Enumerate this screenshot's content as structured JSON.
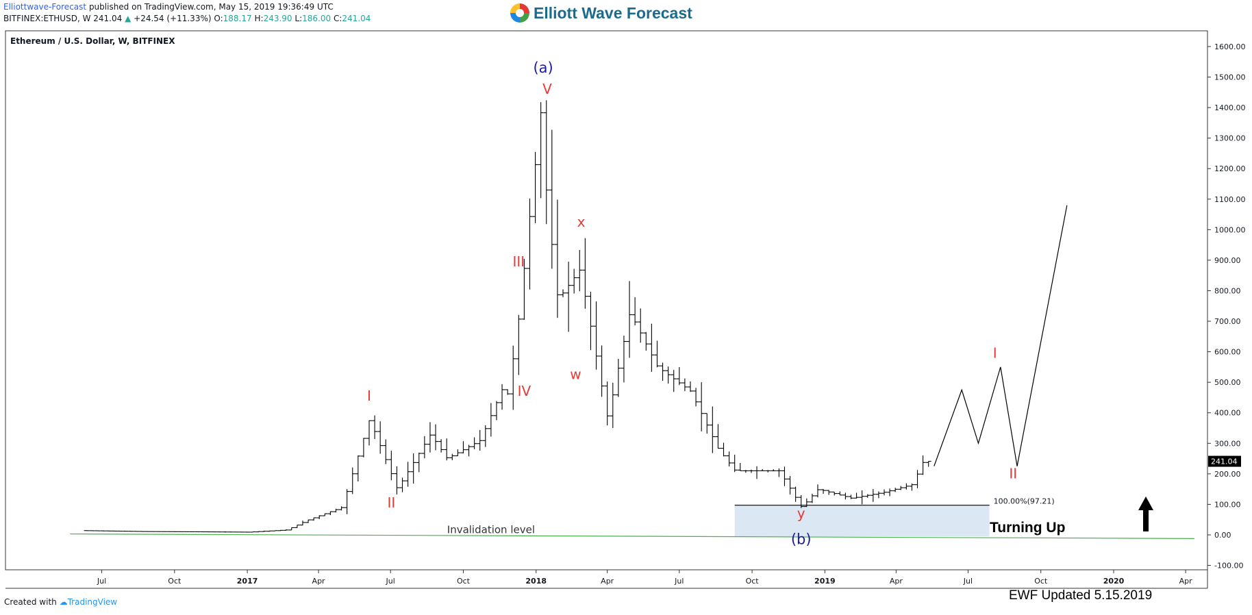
{
  "header": {
    "author": "Elliottwave-Forecast",
    "published": "published on TradingView.com, May 15, 2019 19:36:49 UTC",
    "symbol_line": "BITFINEX:ETHUSD, W  241.04",
    "change_arrow": "▲",
    "change": "+24.54 (+11.33%)",
    "ohlc": [
      {
        "label": "O:",
        "value": "188.17"
      },
      {
        "label": "H:",
        "value": "243.90"
      },
      {
        "label": "L:",
        "value": "186.00"
      },
      {
        "label": "C:",
        "value": "241.04"
      }
    ]
  },
  "brand": {
    "name": "Elliott Wave Forecast"
  },
  "footer": {
    "created_with": "Created with",
    "tradingview": "TradingView",
    "updated": "EWF  Updated 5.15.2019"
  },
  "colors": {
    "wave_red": "#e53935",
    "wave_blue": "#1a1aa8",
    "invalidation_green": "#4caf50",
    "box_fill": "#dbe7f3"
  },
  "chart_data": {
    "type": "candlestick",
    "title": "Ethereum / U.S. Dollar, W, BITFINEX",
    "ylim": [
      -100,
      1650
    ],
    "y_ticks": [
      "1600.00",
      "1500.00",
      "1400.00",
      "1300.00",
      "1200.00",
      "1100.00",
      "1000.00",
      "900.00",
      "800.00",
      "700.00",
      "600.00",
      "500.00",
      "400.00",
      "300.00",
      "200.00",
      "100.00",
      "0.00",
      "-100.00"
    ],
    "x_ticks": [
      "Jul",
      "Oct",
      "2017",
      "Apr",
      "Jul",
      "Oct",
      "2018",
      "Apr",
      "Jul",
      "Oct",
      "2019",
      "Apr",
      "Jul",
      "Oct",
      "2020",
      "Apr"
    ],
    "last_price": "241.04",
    "x_range": [
      "2016-04-24",
      "2020-04-26"
    ],
    "price_path": [
      {
        "date": "2016-06-12",
        "price": 14
      },
      {
        "date": "2016-08-28",
        "price": 11
      },
      {
        "date": "2016-11-13",
        "price": 10
      },
      {
        "date": "2017-01-08",
        "price": 9
      },
      {
        "date": "2017-02-26",
        "price": 16
      },
      {
        "date": "2017-03-26",
        "price": 50
      },
      {
        "date": "2017-05-07",
        "price": 90
      },
      {
        "date": "2017-06-11",
        "price": 380
      },
      {
        "date": "2017-07-16",
        "price": 150
      },
      {
        "date": "2017-08-27",
        "price": 330
      },
      {
        "date": "2017-09-17",
        "price": 250
      },
      {
        "date": "2017-10-29",
        "price": 310
      },
      {
        "date": "2017-11-26",
        "price": 480
      },
      {
        "date": "2017-12-03",
        "price": 460
      },
      {
        "date": "2017-12-17",
        "price": 720
      },
      {
        "date": "2018-01-14",
        "price": 1400
      },
      {
        "date": "2018-01-21",
        "price": 1100
      },
      {
        "date": "2018-02-04",
        "price": 770
      },
      {
        "date": "2018-03-04",
        "price": 870
      },
      {
        "date": "2018-04-08",
        "price": 380
      },
      {
        "date": "2018-05-06",
        "price": 730
      },
      {
        "date": "2018-06-10",
        "price": 550
      },
      {
        "date": "2018-07-22",
        "price": 470
      },
      {
        "date": "2018-08-26",
        "price": 280
      },
      {
        "date": "2018-09-16",
        "price": 210
      },
      {
        "date": "2018-11-11",
        "price": 210
      },
      {
        "date": "2018-12-09",
        "price": 90
      },
      {
        "date": "2018-12-30",
        "price": 150
      },
      {
        "date": "2019-02-10",
        "price": 120
      },
      {
        "date": "2019-03-24",
        "price": 140
      },
      {
        "date": "2019-04-28",
        "price": 165
      },
      {
        "date": "2019-05-12",
        "price": 241
      }
    ],
    "projection": [
      {
        "date": "2019-05-19",
        "price": 225
      },
      {
        "date": "2019-06-23",
        "price": 475
      },
      {
        "date": "2019-07-14",
        "price": 300
      },
      {
        "date": "2019-08-11",
        "price": 550
      },
      {
        "date": "2019-09-01",
        "price": 225
      },
      {
        "date": "2019-11-03",
        "price": 1080
      }
    ],
    "labels": [
      {
        "text": "(a)",
        "date": "2018-01-10",
        "price": 1515,
        "color": "blue",
        "size": 21
      },
      {
        "text": "V",
        "date": "2018-01-15",
        "price": 1445,
        "color": "red",
        "size": 20
      },
      {
        "text": "III",
        "date": "2017-12-10",
        "price": 880,
        "color": "red",
        "size": 20
      },
      {
        "text": "IV",
        "date": "2017-12-17",
        "price": 455,
        "color": "red",
        "size": 20
      },
      {
        "text": "x",
        "date": "2018-02-27",
        "price": 1010,
        "color": "red",
        "size": 20
      },
      {
        "text": "w",
        "date": "2018-02-20",
        "price": 510,
        "color": "red",
        "size": 20
      },
      {
        "text": "I",
        "date": "2017-06-04",
        "price": 440,
        "color": "red",
        "size": 20
      },
      {
        "text": "II",
        "date": "2017-07-02",
        "price": 90,
        "color": "red",
        "size": 20
      },
      {
        "text": "y",
        "date": "2018-12-02",
        "price": 55,
        "color": "red",
        "size": 20
      },
      {
        "text": "(b)",
        "date": "2018-12-02",
        "price": -30,
        "color": "blue",
        "size": 21
      },
      {
        "text": "I",
        "date": "2019-08-04",
        "price": 580,
        "color": "red",
        "size": 20
      },
      {
        "text": "II",
        "date": "2019-08-27",
        "price": 185,
        "color": "red",
        "size": 20
      }
    ],
    "fib_level": {
      "label": "100.00%(97.21)",
      "price": 97.21
    },
    "zone": {
      "start": "2018-09-09",
      "end": "2019-07-28",
      "top": 97.21,
      "bottom": -5
    },
    "invalidation": {
      "label": "Invalidation level",
      "start": "2016-05-22",
      "end": "2020-04-12",
      "price_start": 3,
      "price_end": -12
    },
    "annotation": "Turning Up"
  }
}
